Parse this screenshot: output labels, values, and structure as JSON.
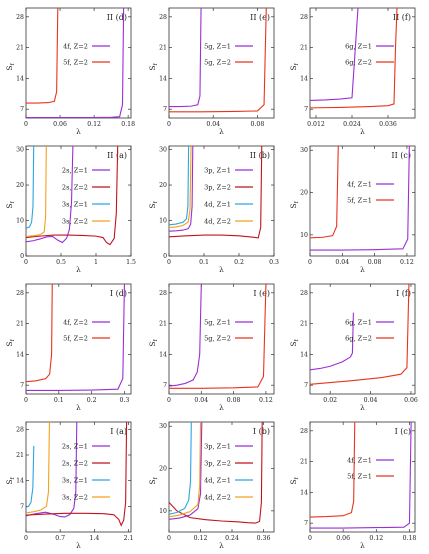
{
  "chart_data": [
    {
      "type": "line",
      "panel_label": "II (d)",
      "ylabel": "S",
      "ylabel_sub": "f",
      "xlabel": "λ",
      "xlim": [
        0,
        0.185
      ],
      "ylim": [
        5,
        30
      ],
      "xticks": [
        0,
        0.06,
        0.12,
        0.18
      ],
      "xtick_labels": [
        "0",
        "0.06",
        "0.12",
        "0.18"
      ],
      "yticks": [
        7,
        14,
        21,
        28
      ],
      "ytick_labels": [
        "7",
        "14",
        "21",
        "28"
      ],
      "legend_placement": "right",
      "series": [
        {
          "name": "4f, Z=2",
          "color": "#9a2fd6",
          "x": [
            0,
            0.04,
            0.08,
            0.12,
            0.15,
            0.165,
            0.17,
            0.172
          ],
          "y": [
            5.1,
            5.1,
            5.1,
            5.1,
            5.15,
            5.3,
            8.0,
            30
          ]
        },
        {
          "name": "5f, Z=2",
          "color": "#e8341c",
          "x": [
            0,
            0.02,
            0.04,
            0.05,
            0.054,
            0.056
          ],
          "y": [
            8.4,
            8.4,
            8.5,
            8.8,
            11.0,
            30
          ]
        }
      ]
    },
    {
      "type": "line",
      "panel_label": "II (e)",
      "ylabel": "S",
      "ylabel_sub": "f",
      "xlabel": "λ",
      "xlim": [
        0,
        0.095
      ],
      "ylim": [
        5,
        30
      ],
      "xticks": [
        0,
        0.04,
        0.08
      ],
      "xtick_labels": [
        "0",
        "0.04",
        "0.08"
      ],
      "yticks": [
        7,
        14,
        21,
        28
      ],
      "ytick_labels": [
        "7",
        "14",
        "21",
        "28"
      ],
      "legend_placement": "right",
      "series": [
        {
          "name": "5g, Z=1",
          "color": "#9a2fd6",
          "x": [
            0,
            0.01,
            0.02,
            0.026,
            0.028,
            0.029
          ],
          "y": [
            7.6,
            7.6,
            7.7,
            8.0,
            10.0,
            30
          ]
        },
        {
          "name": "5g, Z=2",
          "color": "#e8341c",
          "x": [
            0,
            0.03,
            0.06,
            0.08,
            0.086,
            0.088
          ],
          "y": [
            6.4,
            6.4,
            6.5,
            6.6,
            8.0,
            30
          ]
        }
      ]
    },
    {
      "type": "line",
      "panel_label": "II (f)",
      "ylabel": "S",
      "ylabel_sub": "f",
      "xlabel": "λ",
      "xlim": [
        0.01,
        0.045
      ],
      "ylim": [
        5,
        30
      ],
      "xticks": [
        0.012,
        0.024,
        0.036
      ],
      "xtick_labels": [
        "0.012",
        "0.024",
        "0.036"
      ],
      "yticks": [
        7,
        14,
        21,
        28
      ],
      "ytick_labels": [
        "7",
        "14",
        "21",
        "28"
      ],
      "legend_placement": "right",
      "series": [
        {
          "name": "6g, Z=1",
          "color": "#9a2fd6",
          "x": [
            0.01,
            0.015,
            0.02,
            0.024,
            0.026
          ],
          "y": [
            9.0,
            9.1,
            9.3,
            9.6,
            30
          ]
        },
        {
          "name": "6g, Z=2",
          "color": "#e8341c",
          "x": [
            0.01,
            0.02,
            0.03,
            0.036,
            0.038,
            0.0385,
            0.039
          ],
          "y": [
            7.3,
            7.4,
            7.6,
            7.8,
            8.2,
            21.0,
            30
          ]
        }
      ]
    },
    {
      "type": "line",
      "panel_label": "II (a)",
      "ylabel": "S",
      "ylabel_sub": "f",
      "xlabel": "λ",
      "xlim": [
        0,
        1.5
      ],
      "ylim": [
        0,
        31
      ],
      "xticks": [
        0,
        0.5,
        1,
        1.5
      ],
      "xtick_labels": [
        "0",
        "0.5",
        "1",
        "1.5"
      ],
      "yticks": [
        0,
        10,
        20,
        30
      ],
      "ytick_labels": [
        "0",
        "10",
        "20",
        "30"
      ],
      "legend_placement": "right",
      "series": [
        {
          "name": "2s, Z=1",
          "color": "#9a2fd6",
          "x": [
            0,
            0.1,
            0.2,
            0.3,
            0.38,
            0.45,
            0.52,
            0.58,
            0.62,
            0.65,
            0.67
          ],
          "y": [
            4.0,
            4.3,
            4.8,
            5.4,
            5.5,
            4.5,
            3.8,
            5.0,
            7.5,
            15.0,
            31
          ]
        },
        {
          "name": "2s, Z=2",
          "color": "#c0131e",
          "x": [
            0,
            0.2,
            0.4,
            0.6,
            0.8,
            1.0,
            1.1,
            1.15,
            1.2,
            1.26,
            1.29,
            1.31
          ],
          "y": [
            5.2,
            5.6,
            5.9,
            5.9,
            5.8,
            5.6,
            5.2,
            3.8,
            3.2,
            5.0,
            12.0,
            31
          ]
        },
        {
          "name": "3s, Z=1",
          "color": "#2aa6e0",
          "x": [
            0,
            0.05,
            0.08,
            0.1,
            0.11
          ],
          "y": [
            7.8,
            8.2,
            9.5,
            14.0,
            31
          ]
        },
        {
          "name": "3s, Z=2",
          "color": "#f2a01e",
          "x": [
            0,
            0.1,
            0.2,
            0.26,
            0.28,
            0.29
          ],
          "y": [
            5.5,
            5.7,
            6.0,
            6.8,
            11.0,
            31
          ]
        }
      ]
    },
    {
      "type": "line",
      "panel_label": "II (b)",
      "ylabel": "S",
      "ylabel_sub": "f",
      "xlabel": "λ",
      "xlim": [
        0,
        0.3
      ],
      "ylim": [
        0,
        31
      ],
      "xticks": [
        0,
        0.1,
        0.2,
        0.3
      ],
      "xtick_labels": [
        "0",
        "0.1",
        "0.2",
        "0.3"
      ],
      "yticks": [
        0,
        10,
        20,
        30
      ],
      "ytick_labels": [
        "0",
        "10",
        "20",
        "30"
      ],
      "legend_placement": "right",
      "series": [
        {
          "name": "3p, Z=1",
          "color": "#9a2fd6",
          "x": [
            0,
            0.02,
            0.04,
            0.055,
            0.062,
            0.066,
            0.068
          ],
          "y": [
            7.0,
            7.1,
            7.3,
            7.7,
            9.0,
            14.0,
            31
          ]
        },
        {
          "name": "3p, Z=2",
          "color": "#c0131e",
          "x": [
            0,
            0.05,
            0.1,
            0.15,
            0.2,
            0.24,
            0.255,
            0.262,
            0.265
          ],
          "y": [
            5.4,
            5.7,
            5.9,
            5.9,
            5.7,
            5.3,
            5.1,
            8.0,
            31
          ]
        },
        {
          "name": "4d, Z=1",
          "color": "#2aa6e0",
          "x": [
            0,
            0.02,
            0.04,
            0.05,
            0.054,
            0.056
          ],
          "y": [
            8.8,
            9.0,
            9.5,
            10.5,
            14.0,
            31
          ]
        },
        {
          "name": "4d, Z=2",
          "color": "#f2a01e",
          "x": [
            0,
            0.02,
            0.04,
            0.055,
            0.06,
            0.063
          ],
          "y": [
            8.0,
            8.2,
            8.6,
            9.6,
            13.0,
            31
          ]
        }
      ]
    },
    {
      "type": "line",
      "panel_label": "II (c)",
      "ylabel": "S",
      "ylabel_sub": "f",
      "xlabel": "λ",
      "xlim": [
        0,
        0.13
      ],
      "ylim": [
        5,
        31
      ],
      "xticks": [
        0,
        0.04,
        0.08,
        0.12
      ],
      "xtick_labels": [
        "0",
        "0.04",
        "0.08",
        "0.12"
      ],
      "yticks": [
        10,
        20,
        30
      ],
      "ytick_labels": [
        "10",
        "20",
        "30"
      ],
      "legend_placement": "right",
      "series": [
        {
          "name": "4f, Z=1",
          "color": "#9a2fd6",
          "x": [
            0,
            0.04,
            0.08,
            0.115,
            0.121,
            0.123
          ],
          "y": [
            6.4,
            6.4,
            6.5,
            6.7,
            9.0,
            31
          ]
        },
        {
          "name": "5f, Z=1",
          "color": "#e8341c",
          "x": [
            0,
            0.015,
            0.028,
            0.033,
            0.035
          ],
          "y": [
            9.3,
            9.4,
            9.8,
            12.0,
            31
          ]
        }
      ]
    },
    {
      "type": "line",
      "panel_label": "I (d)",
      "ylabel": "S",
      "ylabel_sub": "f",
      "xlabel": "λ",
      "xlim": [
        0,
        0.32
      ],
      "ylim": [
        5,
        30
      ],
      "xticks": [
        0,
        0.1,
        0.2,
        0.3
      ],
      "xtick_labels": [
        "0",
        "0.1",
        "0.2",
        "0.3"
      ],
      "yticks": [
        7,
        14,
        21,
        28
      ],
      "ytick_labels": [
        "7",
        "14",
        "21",
        "28"
      ],
      "legend_placement": "right",
      "series": [
        {
          "name": "4f, Z=2",
          "color": "#9a2fd6",
          "x": [
            0,
            0.1,
            0.2,
            0.28,
            0.295,
            0.3
          ],
          "y": [
            5.8,
            5.8,
            5.9,
            6.1,
            8.5,
            30
          ]
        },
        {
          "name": "5f, Z=2",
          "color": "#e8341c",
          "x": [
            0,
            0.03,
            0.06,
            0.072,
            0.078,
            0.08
          ],
          "y": [
            7.8,
            8.0,
            8.5,
            9.5,
            14.0,
            30
          ]
        }
      ]
    },
    {
      "type": "line",
      "panel_label": "I (e)",
      "ylabel": "S",
      "ylabel_sub": "f",
      "xlabel": "λ",
      "xlim": [
        0,
        0.13
      ],
      "ylim": [
        5,
        30
      ],
      "xticks": [
        0,
        0.04,
        0.08,
        0.12
      ],
      "xtick_labels": [
        "0",
        "0.04",
        "0.08",
        "0.12"
      ],
      "yticks": [
        7,
        14,
        21,
        28
      ],
      "ytick_labels": [
        "7",
        "14",
        "21",
        "28"
      ],
      "legend_placement": "right",
      "series": [
        {
          "name": "5g, Z=1",
          "color": "#9a2fd6",
          "x": [
            0,
            0.01,
            0.02,
            0.03,
            0.035,
            0.038,
            0.04
          ],
          "y": [
            6.8,
            7.0,
            7.4,
            8.2,
            10.0,
            14.0,
            30
          ]
        },
        {
          "name": "5g, Z=2",
          "color": "#e8341c",
          "x": [
            0,
            0.04,
            0.08,
            0.11,
            0.117,
            0.12
          ],
          "y": [
            6.3,
            6.3,
            6.4,
            6.6,
            9.0,
            30
          ]
        }
      ]
    },
    {
      "type": "line",
      "panel_label": "I (f)",
      "ylabel": "S",
      "ylabel_sub": "f",
      "xlabel": "λ",
      "xlim": [
        0.01,
        0.062
      ],
      "ylim": [
        5,
        30
      ],
      "xticks": [
        0.02,
        0.04,
        0.06
      ],
      "xtick_labels": [
        "0.02",
        "0.04",
        "0.06"
      ],
      "yticks": [
        7,
        14,
        21,
        28
      ],
      "ytick_labels": [
        "7",
        "14",
        "21",
        "28"
      ],
      "legend_placement": "right",
      "series": [
        {
          "name": "6g, Z=1",
          "color": "#9a2fd6",
          "x": [
            0.01,
            0.015,
            0.02,
            0.026,
            0.03,
            0.031,
            0.0315
          ],
          "y": [
            10.5,
            10.8,
            11.3,
            12.3,
            13.4,
            14.3,
            23.5
          ]
        },
        {
          "name": "6g, Z=2",
          "color": "#e8341c",
          "x": [
            0.01,
            0.03,
            0.045,
            0.055,
            0.058,
            0.059
          ],
          "y": [
            7.2,
            8.0,
            8.7,
            9.5,
            11.0,
            30
          ]
        }
      ]
    },
    {
      "type": "line",
      "panel_label": "I (a)",
      "ylabel": "S",
      "ylabel_sub": "f",
      "xlabel": "λ",
      "xlim": [
        0,
        2.15
      ],
      "ylim": [
        0,
        30
      ],
      "xticks": [
        0,
        0.7,
        1.4,
        2.1
      ],
      "xtick_labels": [
        "0",
        "0.7",
        "1.4",
        "2.1"
      ],
      "yticks": [
        7,
        14,
        21,
        28
      ],
      "ytick_labels": [
        "7",
        "14",
        "21",
        "28"
      ],
      "legend_placement": "right",
      "series": [
        {
          "name": "2s, Z=1",
          "color": "#9a2fd6",
          "x": [
            0,
            0.2,
            0.4,
            0.55,
            0.7,
            0.8,
            0.9,
            0.98,
            1.02,
            1.04
          ],
          "y": [
            4.4,
            5.0,
            5.4,
            4.9,
            4.2,
            4.1,
            4.8,
            6.5,
            11.0,
            30
          ]
        },
        {
          "name": "2s, Z=2",
          "color": "#c0131e",
          "x": [
            0,
            0.4,
            0.8,
            1.2,
            1.6,
            1.8,
            1.9,
            1.95,
            2.0,
            2.04,
            2.06
          ],
          "y": [
            4.6,
            4.9,
            5.1,
            5.1,
            5.0,
            4.7,
            3.4,
            1.8,
            3.2,
            8.0,
            30
          ]
        },
        {
          "name": "3s, Z=1",
          "color": "#2aa6e0",
          "x": [
            0,
            0.05,
            0.1,
            0.14,
            0.16
          ],
          "y": [
            6.8,
            7.0,
            8.0,
            12.0,
            23.5
          ]
        },
        {
          "name": "3s, Z=2",
          "color": "#f2a01e",
          "x": [
            0,
            0.15,
            0.3,
            0.42,
            0.46,
            0.48
          ],
          "y": [
            5.2,
            5.5,
            6.0,
            7.0,
            11.0,
            30
          ]
        }
      ]
    },
    {
      "type": "line",
      "panel_label": "I (b)",
      "ylabel": "S",
      "ylabel_sub": "f",
      "xlabel": "λ",
      "xlim": [
        0,
        0.4
      ],
      "ylim": [
        5,
        31
      ],
      "xticks": [
        0,
        0.12,
        0.24,
        0.36
      ],
      "xtick_labels": [
        "0",
        "0.12",
        "0.24",
        "0.36"
      ],
      "yticks": [
        10,
        20,
        30
      ],
      "ytick_labels": [
        "10",
        "20",
        "30"
      ],
      "legend_placement": "right",
      "series": [
        {
          "name": "3p, Z=1",
          "color": "#9a2fd6",
          "x": [
            0,
            0.04,
            0.08,
            0.11,
            0.12,
            0.125
          ],
          "y": [
            8.0,
            8.3,
            9.0,
            10.5,
            14.0,
            31
          ]
        },
        {
          "name": "3p, Z=2",
          "color": "#c0131e",
          "x": [
            0,
            0.03,
            0.08,
            0.14,
            0.2,
            0.26,
            0.3,
            0.33,
            0.345,
            0.352,
            0.355
          ],
          "y": [
            12.0,
            10.0,
            8.4,
            7.9,
            7.6,
            7.4,
            7.2,
            7.1,
            7.5,
            12.0,
            31
          ]
        },
        {
          "name": "4d, Z=1",
          "color": "#2aa6e0",
          "x": [
            0,
            0.03,
            0.06,
            0.075,
            0.082,
            0.085
          ],
          "y": [
            9.2,
            9.6,
            10.6,
            12.5,
            17.0,
            31
          ]
        },
        {
          "name": "4d, Z=2",
          "color": "#f2a01e",
          "x": [
            0,
            0.04,
            0.08,
            0.11,
            0.117,
            0.12
          ],
          "y": [
            8.6,
            9.0,
            9.8,
            11.5,
            16.0,
            31
          ]
        }
      ]
    },
    {
      "type": "line",
      "panel_label": "I (c)",
      "ylabel": "S",
      "ylabel_sub": "f",
      "xlabel": "λ",
      "xlim": [
        0,
        0.19
      ],
      "ylim": [
        5,
        30
      ],
      "xticks": [
        0,
        0.06,
        0.12,
        0.18
      ],
      "xtick_labels": [
        "0",
        "0.06",
        "0.12",
        "0.18"
      ],
      "yticks": [
        7,
        14,
        21,
        28
      ],
      "ytick_labels": [
        "7",
        "14",
        "21",
        "28"
      ],
      "legend_placement": "right",
      "series": [
        {
          "name": "4f, Z=1",
          "color": "#9a2fd6",
          "x": [
            0,
            0.06,
            0.12,
            0.17,
            0.18,
            0.183
          ],
          "y": [
            5.9,
            5.9,
            6.0,
            6.1,
            7.0,
            30
          ]
        },
        {
          "name": "5f, Z=1",
          "color": "#e8341c",
          "x": [
            0,
            0.03,
            0.06,
            0.075,
            0.079,
            0.081
          ],
          "y": [
            8.4,
            8.5,
            8.7,
            9.4,
            12.0,
            30
          ]
        }
      ]
    }
  ]
}
